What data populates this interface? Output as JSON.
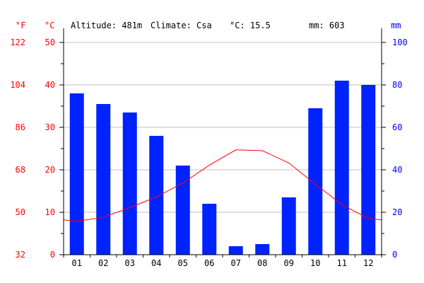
{
  "header": {
    "unit_f": "°F",
    "unit_c": "°C",
    "unit_mm": "mm",
    "altitude": "Altitude: 481m",
    "climate": "Climate: Csa",
    "mean_temp": "°C: 15.5",
    "total_precip": "mm: 603"
  },
  "colors": {
    "precip_bar": "#0022ff",
    "temp_line": "#ff0000",
    "temp_axis": "#ff0000",
    "precip_axis": "#0000ff",
    "grid": "#c0c0c0"
  },
  "chart_data": {
    "type": "bar",
    "categories": [
      "01",
      "02",
      "03",
      "04",
      "05",
      "06",
      "07",
      "08",
      "09",
      "10",
      "11",
      "12"
    ],
    "series": [
      {
        "values": [
          76,
          71,
          67,
          56,
          42,
          24,
          4,
          5,
          27,
          69,
          82,
          80
        ],
        "kind": "bar",
        "axis": "right"
      },
      {
        "values": [
          7.9,
          8.8,
          11.1,
          13.6,
          16.9,
          21.1,
          24.7,
          24.5,
          21.6,
          16.6,
          11.8,
          8.5
        ],
        "kind": "line",
        "axis": "left"
      }
    ],
    "y_left_c": {
      "ylim": [
        0,
        50
      ],
      "ticks": [
        0,
        10,
        20,
        30,
        40,
        50
      ]
    },
    "y_left_f": {
      "ticks": [
        32,
        50,
        68,
        86,
        104,
        122
      ]
    },
    "y_right": {
      "ylim": [
        0,
        100
      ],
      "ticks": [
        0,
        20,
        40,
        60,
        80,
        100
      ]
    },
    "grid": true
  }
}
